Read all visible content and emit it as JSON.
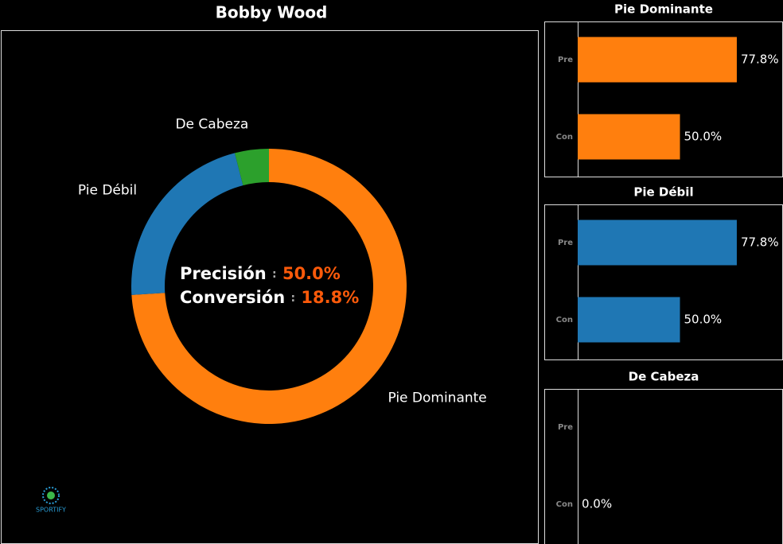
{
  "title": "Bobby Wood",
  "logo": "SPORTIFY",
  "chart_data": [
    {
      "type": "donut",
      "categories": [
        "Pie Dominante",
        "Pie Débil",
        "De Cabeza"
      ],
      "values": [
        74,
        22,
        4
      ],
      "colors": [
        "#ff7f0e",
        "#1f77b4",
        "#2ca02c"
      ],
      "annotations": [
        {
          "label": "Precisión",
          "separator": ":",
          "text": "50.0%"
        },
        {
          "label": "Conversión",
          "separator": ":",
          "text": "18.8%"
        }
      ]
    },
    {
      "type": "barh",
      "title": "Pie Dominante",
      "categories": [
        "Pre",
        "Con"
      ],
      "values": [
        77.8,
        50.0
      ],
      "value_labels": [
        "77.8%",
        "50.0%"
      ],
      "color": "#ff7f0e",
      "xlim": [
        0,
        100
      ]
    },
    {
      "type": "barh",
      "title": "Pie Débil",
      "categories": [
        "Pre",
        "Con"
      ],
      "values": [
        77.8,
        50.0
      ],
      "value_labels": [
        "77.8%",
        "50.0%"
      ],
      "color": "#1f77b4",
      "xlim": [
        0,
        100
      ]
    },
    {
      "type": "barh",
      "title": "De Cabeza",
      "categories": [
        "Pre",
        "Con"
      ],
      "values": [
        null,
        0.0
      ],
      "value_labels": [
        null,
        "0.0%"
      ],
      "color": "#2ca02c",
      "xlim": [
        0,
        100
      ]
    }
  ]
}
